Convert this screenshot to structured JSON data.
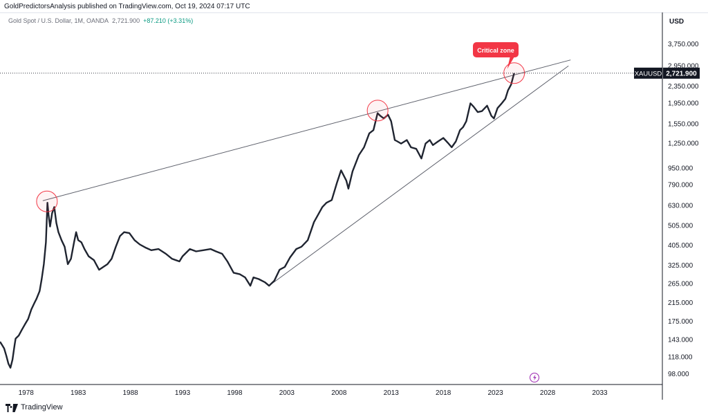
{
  "header": {
    "publisher": "GoldPredictorsAnalysis published on TradingView.com, Oct 19, 2024 07:17 UTC",
    "symbol_desc": "Gold Spot / U.S. Dollar, 1M, OANDA",
    "price": "2,721.900",
    "change": "+87.210 (+3.31%)"
  },
  "price_axis": {
    "currency": "USD"
  },
  "footer": {
    "brand": "TradingView"
  },
  "colors": {
    "line": "#1f2430",
    "circle": "#f23645",
    "callout": "#f23645",
    "label_bg": "#131722",
    "grid": "#e0e3eb"
  },
  "chart_data": {
    "type": "line",
    "x_unit": "year",
    "y_scale": "log",
    "xlim": [
      1975.5,
      2039
    ],
    "ylim": [
      90,
      4500
    ],
    "x_ticks": [
      "1978",
      "1983",
      "1988",
      "1993",
      "1998",
      "2003",
      "2008",
      "2013",
      "2018",
      "2023",
      "2028",
      "2033"
    ],
    "y_ticks": [
      "3,750.000",
      "2,950.000",
      "2,350.000",
      "1,950.000",
      "1,550.000",
      "1,250.000",
      "950.000",
      "790.000",
      "630.000",
      "505.000",
      "405.000",
      "325.000",
      "265.000",
      "215.000",
      "175.000",
      "143.000",
      "118.000",
      "98.000"
    ],
    "series": [
      {
        "x": [
          1975.5,
          1975.7,
          1975.9,
          1976.1,
          1976.3,
          1976.5,
          1976.7,
          1976.9,
          1977.0,
          1977.3,
          1977.6,
          1977.9,
          1978.2,
          1978.5,
          1978.8,
          1979.0,
          1979.3,
          1979.5,
          1979.7,
          1979.9,
          1980.05,
          1980.15,
          1980.3,
          1980.5,
          1980.7,
          1980.9,
          1981.1,
          1981.4,
          1981.7,
          1982.0,
          1982.3,
          1982.6,
          1982.8,
          1983.0,
          1983.3,
          1983.6,
          1984.0,
          1984.5,
          1985.0,
          1985.4,
          1985.8,
          1986.2,
          1986.6,
          1987.0,
          1987.4,
          1987.9,
          1988.4,
          1988.9,
          1989.5,
          1990.0,
          1990.7,
          1991.4,
          1992.0,
          1992.7,
          1993.0,
          1993.7,
          1994.3,
          1995.0,
          1995.7,
          1996.2,
          1996.8,
          1997.3,
          1997.9,
          1998.5,
          1999.0,
          1999.5,
          1999.8,
          2000.3,
          2000.9,
          2001.3,
          2001.8,
          2002.3,
          2002.8,
          2003.3,
          2003.9,
          2004.4,
          2005.0,
          2005.6,
          2006.0,
          2006.4,
          2006.8,
          2007.3,
          2007.8,
          2008.2,
          2008.7,
          2008.9,
          2009.3,
          2009.9,
          2010.4,
          2010.9,
          2011.3,
          2011.7,
          2011.95,
          2012.3,
          2012.7,
          2013.0,
          2013.35,
          2013.6,
          2013.95,
          2014.5,
          2014.9,
          2015.4,
          2015.9,
          2016.3,
          2016.7,
          2017.0,
          2017.5,
          2018.0,
          2018.5,
          2018.8,
          2019.2,
          2019.6,
          2019.9,
          2020.2,
          2020.6,
          2020.9,
          2021.3,
          2021.7,
          2022.2,
          2022.6,
          2022.85,
          2023.2,
          2023.6,
          2023.95,
          2024.2,
          2024.5,
          2024.79
        ],
        "y": [
          140,
          135,
          130,
          120,
          110,
          105,
          115,
          135,
          145,
          150,
          160,
          170,
          180,
          200,
          215,
          225,
          245,
          280,
          330,
          420,
          650,
          570,
          500,
          580,
          620,
          520,
          470,
          430,
          400,
          330,
          350,
          420,
          470,
          430,
          420,
          390,
          360,
          345,
          310,
          320,
          330,
          350,
          400,
          450,
          470,
          465,
          430,
          410,
          395,
          385,
          390,
          370,
          350,
          340,
          360,
          390,
          380,
          385,
          390,
          380,
          370,
          340,
          300,
          295,
          285,
          260,
          285,
          280,
          270,
          260,
          275,
          310,
          320,
          355,
          390,
          400,
          430,
          525,
          570,
          620,
          650,
          670,
          810,
          930,
          830,
          760,
          920,
          1100,
          1200,
          1400,
          1450,
          1750,
          1700,
          1650,
          1720,
          1600,
          1300,
          1280,
          1250,
          1300,
          1200,
          1180,
          1060,
          1250,
          1300,
          1230,
          1280,
          1330,
          1250,
          1200,
          1280,
          1450,
          1500,
          1600,
          1950,
          1880,
          1770,
          1790,
          1900,
          1700,
          1650,
          1850,
          1950,
          2050,
          2250,
          2400,
          2721.9
        ]
      }
    ],
    "trendlines": [
      {
        "x": [
          1979.6,
          2030.2
        ],
        "y": [
          665,
          3150
        ]
      },
      {
        "x": [
          2001.3,
          2030
        ],
        "y": [
          260,
          2950
        ]
      }
    ],
    "highlights": [
      {
        "x": 1980.0,
        "y": 660
      },
      {
        "x": 2011.7,
        "y": 1800
      },
      {
        "x": 2024.79,
        "y": 2721.9
      }
    ],
    "callout_label": "Critical zone",
    "last_price_label": {
      "symbol": "XAUUSD",
      "value": "2,721.900",
      "y": 2721.9
    }
  }
}
